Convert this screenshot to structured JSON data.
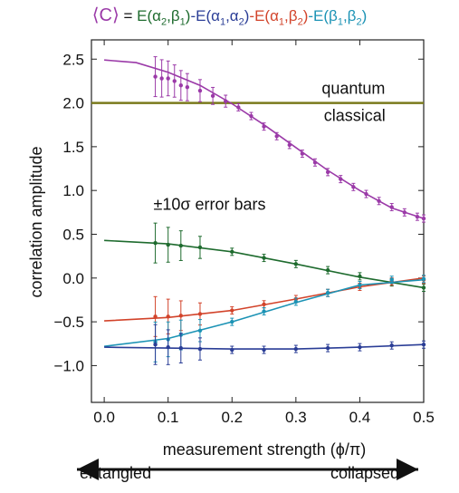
{
  "title": {
    "prefix": "⟨C⟩",
    "equals": " = ",
    "terms": [
      {
        "text": "E(α",
        "s1": "2",
        "mid": ",β",
        "s2": "1",
        "end": ")",
        "color": "#1e6b2e"
      },
      {
        "text": "-E(α",
        "s1": "1",
        "mid": ",α",
        "s2": "2",
        "end": ")",
        "color": "#2a3d96"
      },
      {
        "text": "-E(α",
        "s1": "1",
        "mid": ",β",
        "s2": "2",
        "end": ")",
        "color": "#d2432a"
      },
      {
        "text": "-E(β",
        "s1": "1",
        "mid": ",β",
        "s2": "2",
        "end": ")",
        "color": "#1c93b5"
      }
    ]
  },
  "chart_data": {
    "type": "line",
    "xlabel": "measurement strength (ϕ/π)",
    "ylabel": "correlation amplitude",
    "xlim": [
      -0.02,
      0.5
    ],
    "ylim": [
      -1.42,
      2.72
    ],
    "xticks": [
      "0.0",
      "0.1",
      "0.2",
      "0.3",
      "0.4",
      "0.5"
    ],
    "yticks": [
      "2.5",
      "2.0",
      "1.5",
      "1.0",
      "0.5",
      "0.0",
      "−0.5",
      "−1.0"
    ],
    "classical_bound": 2.0,
    "annotations": {
      "quantum": "quantum",
      "classical": "classical",
      "errorbars": "±10σ error bars"
    },
    "bottom": {
      "left": "entangled",
      "right": "collapsed"
    },
    "series": [
      {
        "color": "#9b3aa8",
        "theory": [
          [
            0.0,
            2.49
          ],
          [
            0.05,
            2.46
          ],
          [
            0.1,
            2.35
          ],
          [
            0.15,
            2.2
          ],
          [
            0.2,
            1.99
          ],
          [
            0.25,
            1.75
          ],
          [
            0.3,
            1.49
          ],
          [
            0.35,
            1.23
          ],
          [
            0.4,
            1.0
          ],
          [
            0.45,
            0.8
          ],
          [
            0.5,
            0.68
          ]
        ],
        "data": [
          [
            0.08,
            2.3
          ],
          [
            0.09,
            2.28
          ],
          [
            0.1,
            2.28
          ],
          [
            0.11,
            2.25
          ],
          [
            0.12,
            2.2
          ],
          [
            0.13,
            2.18
          ],
          [
            0.15,
            2.14
          ],
          [
            0.17,
            2.08
          ],
          [
            0.19,
            2.02
          ],
          [
            0.21,
            1.95
          ],
          [
            0.23,
            1.85
          ],
          [
            0.25,
            1.73
          ],
          [
            0.27,
            1.62
          ],
          [
            0.29,
            1.52
          ],
          [
            0.31,
            1.42
          ],
          [
            0.33,
            1.32
          ],
          [
            0.35,
            1.21
          ],
          [
            0.37,
            1.13
          ],
          [
            0.39,
            1.04
          ],
          [
            0.41,
            0.96
          ],
          [
            0.43,
            0.88
          ],
          [
            0.45,
            0.81
          ],
          [
            0.47,
            0.75
          ],
          [
            0.49,
            0.7
          ],
          [
            0.5,
            0.68
          ]
        ]
      },
      {
        "color": "#1e6b2e",
        "theory": [
          [
            0.0,
            0.43
          ],
          [
            0.1,
            0.39
          ],
          [
            0.2,
            0.3
          ],
          [
            0.3,
            0.16
          ],
          [
            0.4,
            0.01
          ],
          [
            0.5,
            -0.11
          ]
        ],
        "data": [
          [
            0.08,
            0.4
          ],
          [
            0.1,
            0.38
          ],
          [
            0.12,
            0.37
          ],
          [
            0.15,
            0.35
          ],
          [
            0.2,
            0.3
          ],
          [
            0.25,
            0.23
          ],
          [
            0.3,
            0.16
          ],
          [
            0.35,
            0.09
          ],
          [
            0.4,
            0.02
          ],
          [
            0.45,
            -0.05
          ],
          [
            0.5,
            -0.11
          ]
        ]
      },
      {
        "color": "#d2432a",
        "theory": [
          [
            0.0,
            -0.49
          ],
          [
            0.1,
            -0.45
          ],
          [
            0.2,
            -0.37
          ],
          [
            0.3,
            -0.24
          ],
          [
            0.4,
            -0.1
          ],
          [
            0.5,
            0.0
          ]
        ],
        "data": [
          [
            0.08,
            -0.44
          ],
          [
            0.1,
            -0.44
          ],
          [
            0.12,
            -0.43
          ],
          [
            0.15,
            -0.41
          ],
          [
            0.2,
            -0.37
          ],
          [
            0.25,
            -0.3
          ],
          [
            0.3,
            -0.24
          ],
          [
            0.35,
            -0.17
          ],
          [
            0.4,
            -0.1
          ],
          [
            0.45,
            -0.04
          ],
          [
            0.5,
            -0.02
          ]
        ]
      },
      {
        "color": "#1c93b5",
        "theory": [
          [
            0.0,
            -0.78
          ],
          [
            0.1,
            -0.69
          ],
          [
            0.2,
            -0.5
          ],
          [
            0.3,
            -0.28
          ],
          [
            0.4,
            -0.08
          ],
          [
            0.5,
            -0.02
          ]
        ],
        "data": [
          [
            0.08,
            -0.73
          ],
          [
            0.1,
            -0.7
          ],
          [
            0.12,
            -0.65
          ],
          [
            0.15,
            -0.6
          ],
          [
            0.2,
            -0.5
          ],
          [
            0.25,
            -0.38
          ],
          [
            0.3,
            -0.27
          ],
          [
            0.35,
            -0.17
          ],
          [
            0.4,
            -0.08
          ],
          [
            0.45,
            -0.02
          ],
          [
            0.5,
            -0.01
          ]
        ]
      },
      {
        "color": "#2a3d96",
        "theory": [
          [
            0.0,
            -0.79
          ],
          [
            0.1,
            -0.8
          ],
          [
            0.2,
            -0.81
          ],
          [
            0.3,
            -0.81
          ],
          [
            0.4,
            -0.79
          ],
          [
            0.5,
            -0.76
          ]
        ],
        "data": [
          [
            0.08,
            -0.76
          ],
          [
            0.1,
            -0.79
          ],
          [
            0.12,
            -0.8
          ],
          [
            0.15,
            -0.81
          ],
          [
            0.2,
            -0.82
          ],
          [
            0.25,
            -0.82
          ],
          [
            0.3,
            -0.81
          ],
          [
            0.35,
            -0.8
          ],
          [
            0.4,
            -0.79
          ],
          [
            0.45,
            -0.77
          ],
          [
            0.5,
            -0.76
          ]
        ]
      }
    ]
  }
}
